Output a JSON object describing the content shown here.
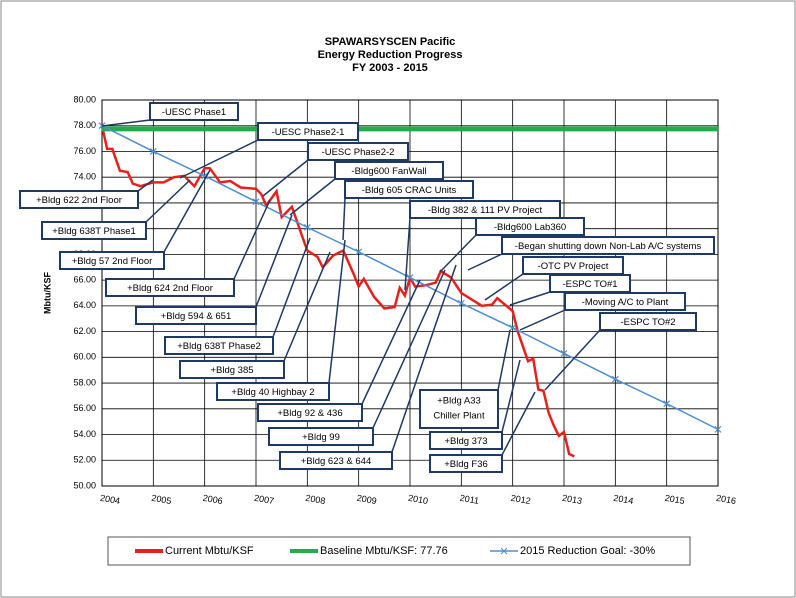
{
  "chart_data": {
    "type": "line",
    "title": [
      "SPAWARSYSCEN Pacific",
      "Energy Reduction Progress",
      "FY 2003 - 2015"
    ],
    "ylabel": "Mbtu/KSF",
    "xlim": [
      2004,
      2016
    ],
    "xticks": [
      2004,
      2005,
      2006,
      2007,
      2008,
      2009,
      2010,
      2011,
      2012,
      2013,
      2014,
      2015,
      2016
    ],
    "ylim": [
      50,
      80
    ],
    "yticks": [
      {
        "value": 50,
        "label": "50.00"
      },
      {
        "value": 52,
        "label": "52.00"
      },
      {
        "value": 54,
        "label": "54.00"
      },
      {
        "value": 56,
        "label": "56.00"
      },
      {
        "value": 58,
        "label": "58.00"
      },
      {
        "value": 60,
        "label": "60.00"
      },
      {
        "value": 62,
        "label": "62.00"
      },
      {
        "value": 64,
        "label": "64.00"
      },
      {
        "value": 66,
        "label": "66.00"
      },
      {
        "value": 68,
        "label": "68.00"
      },
      {
        "value": 70,
        "label": "70.00"
      },
      {
        "value": 72,
        "label": "72.00"
      },
      {
        "value": 74,
        "label": "74.00"
      },
      {
        "value": 76,
        "label": "76.00"
      },
      {
        "value": 78,
        "label": "78.00"
      },
      {
        "value": 80,
        "label": "80.00"
      }
    ],
    "grid": true,
    "series": [
      {
        "name": "Current Mbtu/KSF",
        "color": "#e8201c",
        "x": [
          2004.0,
          2004.1,
          2004.2,
          2004.35,
          2004.5,
          2004.6,
          2004.75,
          2005.0,
          2005.2,
          2005.4,
          2005.6,
          2005.8,
          2006.0,
          2006.1,
          2006.3,
          2006.5,
          2006.7,
          2007.0,
          2007.1,
          2007.2,
          2007.4,
          2007.5,
          2007.7,
          2007.9,
          2008.0,
          2008.2,
          2008.3,
          2008.5,
          2008.7,
          2008.9,
          2009.0,
          2009.1,
          2009.3,
          2009.5,
          2009.7,
          2009.8,
          2009.9,
          2010.0,
          2010.1,
          2010.3,
          2010.5,
          2010.6,
          2010.8,
          2011.0,
          2011.2,
          2011.4,
          2011.6,
          2011.7,
          2012.0,
          2012.1,
          2012.3,
          2012.4,
          2012.5,
          2012.6,
          2012.7,
          2012.8,
          2012.9,
          2013.0,
          2013.1,
          2013.2
        ],
        "values": [
          78,
          76.2,
          76.2,
          74.5,
          74.4,
          73.5,
          73.3,
          73.6,
          73.6,
          74.0,
          74.1,
          73.3,
          74.7,
          74.7,
          73.6,
          73.7,
          73.2,
          73.1,
          72.7,
          71.8,
          72.9,
          70.9,
          71.7,
          69.4,
          68.3,
          67.8,
          67.0,
          67.9,
          68.3,
          66.5,
          65.5,
          66.1,
          64.7,
          63.8,
          63.9,
          65.4,
          64.8,
          66.2,
          65.5,
          65.6,
          65.8,
          66.7,
          66.2,
          65.0,
          64.5,
          64.0,
          64.1,
          64.6,
          63.6,
          62.0,
          59.7,
          59.9,
          57.5,
          57.4,
          55.7,
          54.7,
          53.9,
          54.2,
          52.5,
          52.3
        ]
      },
      {
        "name": "Baseline Mbtu/KSF: 77.76",
        "color": "#1fae4a",
        "x": [
          2004,
          2016
        ],
        "values": [
          77.76,
          77.76
        ]
      },
      {
        "name": "2015 Reduction Goal: -30%",
        "color": "#4f8fce",
        "marker": "x",
        "x": [
          2004,
          2005,
          2006,
          2007,
          2008,
          2009,
          2010,
          2011,
          2012,
          2013,
          2014,
          2015,
          2016
        ],
        "values": [
          78,
          76.0,
          74.1,
          72.1,
          70.1,
          68.2,
          66.2,
          64.2,
          62.3,
          60.3,
          58.3,
          56.4,
          54.4
        ]
      }
    ],
    "annotations": [
      [
        "-UESC Phase1"
      ],
      [
        "-UESC Phase2-1"
      ],
      [
        "-UESC Phase2-2"
      ],
      [
        "-Bldg600 FanWall"
      ],
      [
        "-Bldg 605 CRAC Units"
      ],
      [
        "-Bldg 382 & 111 PV Project"
      ],
      [
        "-Bldg600 Lab360"
      ],
      [
        "-Began shutting down Non-Lab A/C systems"
      ],
      [
        "-OTC PV Project"
      ],
      [
        "-ESPC TO#1"
      ],
      [
        "-Moving A/C to Plant"
      ],
      [
        "-ESPC TO#2"
      ],
      [
        "+Bldg 622 2nd Floor"
      ],
      [
        "+Bldg 638T Phase1"
      ],
      [
        "+Bldg 57 2nd Floor"
      ],
      [
        "+Bldg 624 2nd Floor"
      ],
      [
        "+Bldg 594 & 651"
      ],
      [
        "+Bldg 638T Phase2"
      ],
      [
        "+Bldg 385"
      ],
      [
        "+Bldg 40 Highbay 2"
      ],
      [
        "+Bldg 92 & 436"
      ],
      [
        "+Bldg 99"
      ],
      [
        "+Bldg 623 & 644"
      ],
      [
        "+Bldg A33",
        "Chiller Plant"
      ],
      [
        "+Bldg 373"
      ],
      [
        "+Bldg F36"
      ]
    ]
  }
}
